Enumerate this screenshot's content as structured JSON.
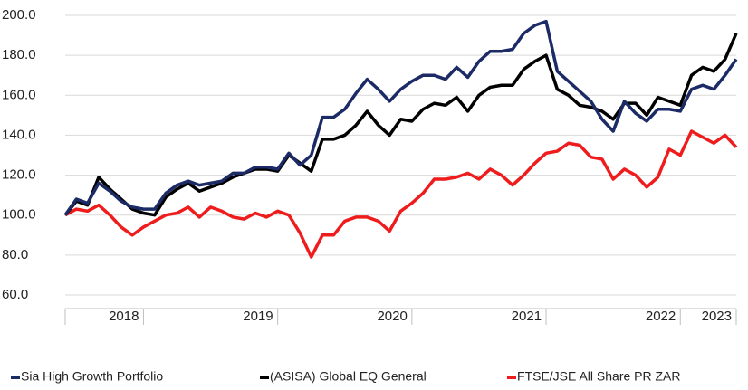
{
  "chart_data": {
    "type": "line",
    "categories": [
      null,
      null,
      null,
      null,
      null,
      null,
      null,
      "2018",
      null,
      null,
      null,
      null,
      null,
      null,
      null,
      null,
      null,
      null,
      null,
      "2019",
      null,
      null,
      null,
      null,
      null,
      null,
      null,
      null,
      null,
      null,
      null,
      "2020",
      null,
      null,
      null,
      null,
      null,
      null,
      null,
      null,
      null,
      null,
      null,
      "2021",
      null,
      null,
      null,
      null,
      null,
      null,
      null,
      null,
      null,
      null,
      null,
      "2022",
      null,
      null,
      null,
      null,
      "2023"
    ],
    "series": [
      {
        "name": "Sia High Growth Portfolio",
        "color": "#1c2b66",
        "values": [
          100,
          108,
          106,
          116,
          112,
          107,
          104,
          103,
          103,
          111,
          115,
          117,
          115,
          116,
          117,
          121,
          121,
          124,
          124,
          123,
          131,
          125,
          130,
          149,
          149,
          153,
          161,
          168,
          163,
          157,
          163,
          167,
          170,
          170,
          168,
          174,
          169,
          177,
          182,
          182,
          183,
          191,
          195,
          197,
          172,
          167,
          162,
          157,
          148,
          142,
          157,
          151,
          147,
          153,
          153,
          152,
          163,
          165,
          163,
          170,
          178
        ]
      },
      {
        "name": "(ASISA) Global EQ General",
        "color": "#000000",
        "values": [
          100,
          107,
          105,
          119,
          113,
          108,
          103,
          101,
          100,
          109,
          113,
          116,
          112,
          114,
          116,
          119,
          121,
          123,
          123,
          122,
          130,
          126,
          122,
          138,
          138,
          140,
          145,
          152,
          145,
          140,
          148,
          147,
          153,
          156,
          155,
          159,
          152,
          160,
          164,
          165,
          165,
          173,
          177,
          180,
          163,
          160,
          155,
          154,
          152,
          148,
          156,
          156,
          150,
          159,
          157,
          155,
          170,
          174,
          172,
          178,
          191
        ]
      },
      {
        "name": "FTSE/JSE All Share PR ZAR",
        "color": "#ee1c1c",
        "values": [
          100,
          103,
          102,
          105,
          100,
          94,
          90,
          94,
          97,
          100,
          101,
          104,
          99,
          104,
          102,
          99,
          98,
          101,
          99,
          102,
          100,
          91,
          79,
          90,
          90,
          97,
          99,
          99,
          97,
          92,
          102,
          106,
          111,
          118,
          118,
          119,
          121,
          118,
          123,
          120,
          115,
          120,
          126,
          131,
          132,
          136,
          135,
          129,
          128,
          118,
          123,
          120,
          114,
          119,
          133,
          130,
          142,
          139,
          136,
          140,
          134
        ]
      }
    ],
    "ylim": [
      60,
      200
    ],
    "yticks": [
      {
        "value": 60,
        "label": "60.0"
      },
      {
        "value": 80,
        "label": "80.0"
      },
      {
        "value": 100,
        "label": "100.0"
      },
      {
        "value": 120,
        "label": "120.0"
      },
      {
        "value": 140,
        "label": "140.0"
      },
      {
        "value": 160,
        "label": "160.0"
      },
      {
        "value": 180,
        "label": "180.0"
      },
      {
        "value": 200,
        "label": "200.0"
      }
    ],
    "grid": true,
    "legend": "bottom"
  }
}
